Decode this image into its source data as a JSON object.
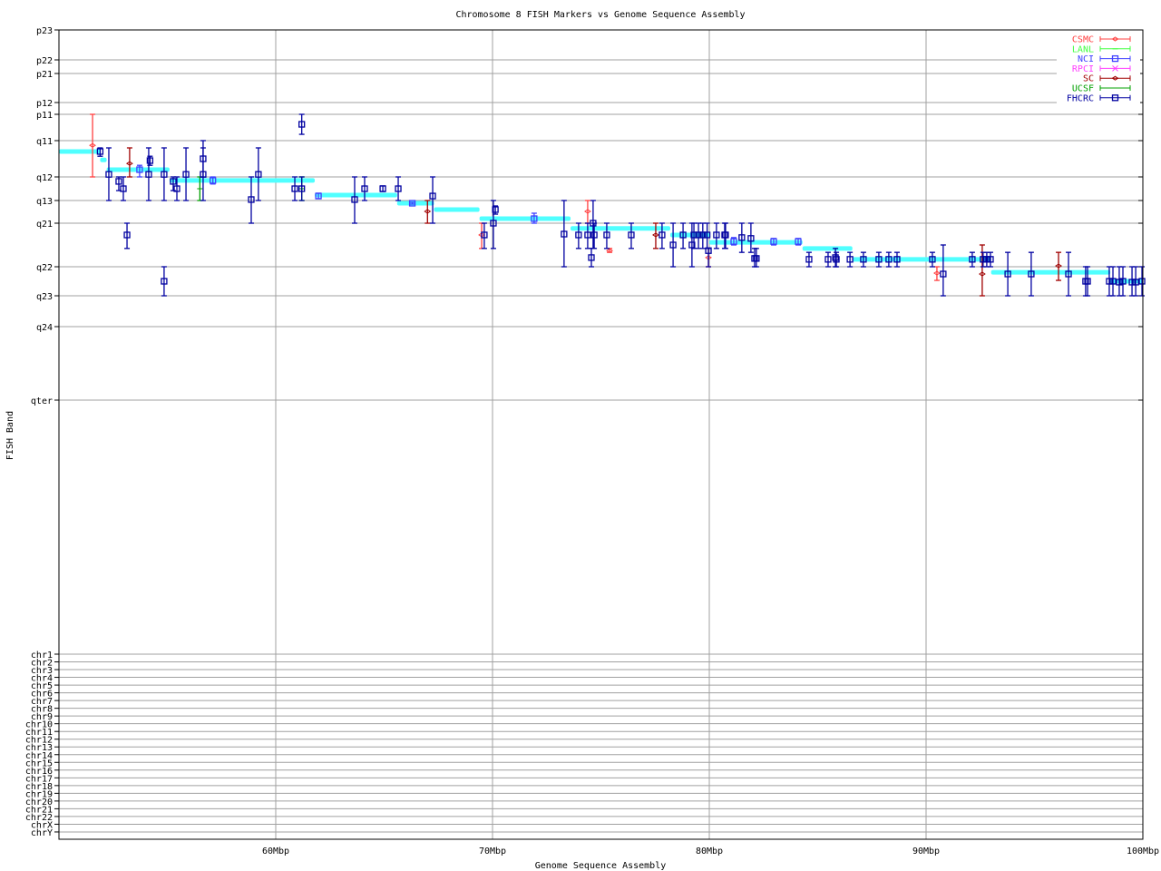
{
  "chart_data": {
    "type": "scatter",
    "title": "Chromosome 8 FISH Markers vs Genome Sequence Assembly",
    "xlabel": "Genome Sequence Assembly",
    "ylabel": "FISH Band",
    "xlim": [
      50,
      100
    ],
    "x_ticks": [
      {
        "v": 60,
        "label": "60Mbp"
      },
      {
        "v": 70,
        "label": "70Mbp"
      },
      {
        "v": 80,
        "label": "80Mbp"
      },
      {
        "v": 90,
        "label": "90Mbp"
      },
      {
        "v": 100,
        "label": "100Mbp"
      }
    ],
    "y_bands": [
      "p23",
      "p22",
      "p21",
      "p12",
      "p11",
      "q11",
      "q12",
      "q13",
      "q21",
      "q22",
      "q23",
      "q24",
      "qter"
    ],
    "y_note_units": "band index (p23=0 … qter=12)",
    "chromosomes": [
      "chr1",
      "chr2",
      "chr3",
      "chr4",
      "chr5",
      "chr6",
      "chr7",
      "chr8",
      "chr9",
      "chr10",
      "chr11",
      "chr12",
      "chr13",
      "chr14",
      "chr15",
      "chr16",
      "chr17",
      "chr18",
      "chr19",
      "chr20",
      "chr21",
      "chr22",
      "chrX",
      "chrY"
    ],
    "grid": true,
    "legend_position": "top-right",
    "legend": [
      {
        "name": "CSMC",
        "color": "#ff4040",
        "marker": "diamond"
      },
      {
        "name": "LANL",
        "color": "#40ff40",
        "marker": "none"
      },
      {
        "name": "NCI",
        "color": "#4040ff",
        "marker": "square"
      },
      {
        "name": "RPCI",
        "color": "#ff40ff",
        "marker": "x"
      },
      {
        "name": "SC",
        "color": "#a00000",
        "marker": "diamond"
      },
      {
        "name": "UCSF",
        "color": "#00a000",
        "marker": "none"
      },
      {
        "name": "FHCRC",
        "color": "#0000a0",
        "marker": "square"
      }
    ],
    "assembly_segments_color": "#50ffff",
    "assembly_segments": [
      [
        50,
        51.9,
        5.3
      ],
      [
        51.9,
        52.2,
        5.53
      ],
      [
        52.2,
        55.1,
        5.8
      ],
      [
        55.1,
        61.8,
        6.15
      ],
      [
        61.8,
        65.6,
        6.77
      ],
      [
        65.6,
        67.3,
        7.12
      ],
      [
        67.3,
        69.4,
        7.4
      ],
      [
        69.4,
        73.6,
        7.8
      ],
      [
        73.6,
        78.2,
        8.12
      ],
      [
        78.2,
        80.0,
        8.27
      ],
      [
        80.0,
        84.3,
        8.44
      ],
      [
        84.3,
        86.6,
        8.58
      ],
      [
        86.6,
        93.0,
        8.83
      ],
      [
        93.0,
        98.5,
        9.19
      ],
      [
        98.5,
        100,
        9.5
      ]
    ],
    "series": [
      {
        "name": "CSMC",
        "points": [
          [
            51.55,
            5.13,
            4.0,
            6.0
          ],
          [
            69.5,
            8.27,
            8.0,
            8.58
          ],
          [
            74.39,
            7.48,
            7.0,
            8.0
          ],
          [
            75.4,
            8.63,
            8.58,
            8.67
          ],
          [
            79.96,
            8.79,
            8.58,
            9.0
          ],
          [
            90.5,
            9.22,
            9.0,
            9.47
          ]
        ]
      },
      {
        "name": "NCI",
        "points": [
          [
            53.72,
            5.8,
            5.68,
            6.0
          ],
          [
            57.1,
            6.15,
            6.0,
            6.3
          ],
          [
            61.97,
            6.81,
            6.69,
            6.92
          ],
          [
            66.3,
            7.12,
            7.08,
            7.16
          ],
          [
            71.92,
            7.8,
            7.56,
            8.0
          ],
          [
            81.13,
            8.42,
            8.33,
            8.5
          ],
          [
            82.97,
            8.42,
            8.35,
            8.5
          ],
          [
            84.1,
            8.42,
            8.35,
            8.5
          ]
        ]
      },
      {
        "name": "UCSF",
        "points": [
          [
            56.5,
            6.5,
            6.0,
            7.0
          ],
          [
            61.2,
            6.5,
            6.0,
            7.0
          ]
        ]
      },
      {
        "name": "SC",
        "points": [
          [
            53.26,
            5.63,
            5.2,
            6.0
          ],
          [
            67.0,
            7.48,
            7.0,
            8.0
          ],
          [
            77.53,
            8.27,
            8.0,
            8.58
          ],
          [
            92.59,
            9.25,
            8.5,
            10.0
          ],
          [
            96.11,
            8.98,
            8.67,
            9.47
          ]
        ]
      },
      {
        "name": "FHCRC",
        "points": [
          [
            51.9,
            5.3,
            5.2,
            5.43
          ],
          [
            52.3,
            5.93,
            5.2,
            7.0
          ],
          [
            52.76,
            6.19,
            6.0,
            6.58
          ],
          [
            52.97,
            6.5,
            6.0,
            7.0
          ],
          [
            53.14,
            8.27,
            8.0,
            8.58
          ],
          [
            54.14,
            5.93,
            5.2,
            7.0
          ],
          [
            54.2,
            5.55,
            5.43,
            5.68
          ],
          [
            54.85,
            5.93,
            5.2,
            7.0
          ],
          [
            54.85,
            9.5,
            9.0,
            10.0
          ],
          [
            55.27,
            6.19,
            6.0,
            6.58
          ],
          [
            55.44,
            6.5,
            6.0,
            7.0
          ],
          [
            55.86,
            5.93,
            5.2,
            7.0
          ],
          [
            56.65,
            5.93,
            5.0,
            7.0
          ],
          [
            56.65,
            5.5,
            5.2,
            6.0
          ],
          [
            58.87,
            6.96,
            6.0,
            8.0
          ],
          [
            59.2,
            5.93,
            5.2,
            7.0
          ],
          [
            60.88,
            6.5,
            6.0,
            7.0
          ],
          [
            61.2,
            4.38,
            4.0,
            4.76
          ],
          [
            61.2,
            6.5,
            6.0,
            7.0
          ],
          [
            63.64,
            6.96,
            6.0,
            8.0
          ],
          [
            64.1,
            6.5,
            6.0,
            7.0
          ],
          [
            64.94,
            6.5,
            6.38,
            6.62
          ],
          [
            65.65,
            6.5,
            6.0,
            7.0
          ],
          [
            67.24,
            6.81,
            6.0,
            8.0
          ],
          [
            69.62,
            8.27,
            8.0,
            8.58
          ],
          [
            70.04,
            8.0,
            7.0,
            8.58
          ],
          [
            70.13,
            7.4,
            7.24,
            7.6
          ],
          [
            73.3,
            8.25,
            7.0,
            9.0
          ],
          [
            73.97,
            8.27,
            8.0,
            8.58
          ],
          [
            74.39,
            8.27,
            8.0,
            8.58
          ],
          [
            74.56,
            8.79,
            8.58,
            9.0
          ],
          [
            74.64,
            8.0,
            7.0,
            8.58
          ],
          [
            74.69,
            8.27,
            8.0,
            8.58
          ],
          [
            75.27,
            8.27,
            8.0,
            8.58
          ],
          [
            76.4,
            8.27,
            8.0,
            8.58
          ],
          [
            77.82,
            8.27,
            8.0,
            8.58
          ],
          [
            78.33,
            8.5,
            8.0,
            9.0
          ],
          [
            78.79,
            8.27,
            8.0,
            8.58
          ],
          [
            79.2,
            8.5,
            8.0,
            9.0
          ],
          [
            79.29,
            8.27,
            8.0,
            8.58
          ],
          [
            79.5,
            8.27,
            8.0,
            8.58
          ],
          [
            79.7,
            8.27,
            8.0,
            8.58
          ],
          [
            79.9,
            8.27,
            8.0,
            8.58
          ],
          [
            79.96,
            8.63,
            8.58,
            9.0
          ],
          [
            80.33,
            8.27,
            8.0,
            8.58
          ],
          [
            80.71,
            8.27,
            8.0,
            8.58
          ],
          [
            80.75,
            8.27,
            8.0,
            8.58
          ],
          [
            81.5,
            8.33,
            8.0,
            8.67
          ],
          [
            81.92,
            8.35,
            8.0,
            8.67
          ],
          [
            82.09,
            8.81,
            8.58,
            9.0
          ],
          [
            82.17,
            8.81,
            8.58,
            9.0
          ],
          [
            84.6,
            8.83,
            8.67,
            9.0
          ],
          [
            85.48,
            8.83,
            8.67,
            9.0
          ],
          [
            85.82,
            8.79,
            8.58,
            9.0
          ],
          [
            85.86,
            8.83,
            8.67,
            9.0
          ],
          [
            86.49,
            8.83,
            8.67,
            9.0
          ],
          [
            87.11,
            8.83,
            8.67,
            9.0
          ],
          [
            87.82,
            8.83,
            8.67,
            9.0
          ],
          [
            88.28,
            8.83,
            8.67,
            9.0
          ],
          [
            88.66,
            8.83,
            8.67,
            9.0
          ],
          [
            90.29,
            8.83,
            8.67,
            9.0
          ],
          [
            90.79,
            9.25,
            8.5,
            10.0
          ],
          [
            92.13,
            8.83,
            8.67,
            9.0
          ],
          [
            92.63,
            8.83,
            8.67,
            9.0
          ],
          [
            92.8,
            8.83,
            8.67,
            9.0
          ],
          [
            92.97,
            8.83,
            8.67,
            9.0
          ],
          [
            93.77,
            9.25,
            8.67,
            10.0
          ],
          [
            94.85,
            9.25,
            8.67,
            10.0
          ],
          [
            96.57,
            9.25,
            8.67,
            10.0
          ],
          [
            97.36,
            9.5,
            9.0,
            10.0
          ],
          [
            97.45,
            9.5,
            9.0,
            10.0
          ],
          [
            98.45,
            9.5,
            9.0,
            10.0
          ],
          [
            98.62,
            9.5,
            9.0,
            10.0
          ],
          [
            98.91,
            9.53,
            9.0,
            10.0
          ],
          [
            99.08,
            9.5,
            9.0,
            10.0
          ],
          [
            99.5,
            9.53,
            9.0,
            10.0
          ],
          [
            99.67,
            9.53,
            9.0,
            10.0
          ],
          [
            99.96,
            9.5,
            9.0,
            10.0
          ]
        ]
      }
    ]
  }
}
